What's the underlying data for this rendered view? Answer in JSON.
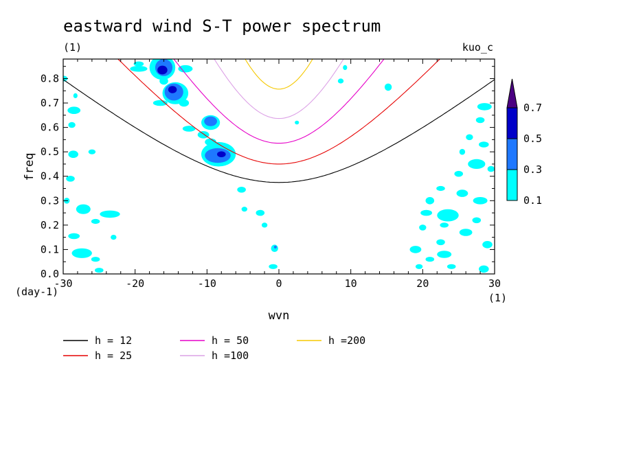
{
  "chart_data": {
    "type": "heatmap",
    "title": "eastward wind S-T power spectrum",
    "subtitle_left": "(1)",
    "subtitle_right": "kuo_c",
    "xlabel": "wvn",
    "ylabel": "freq",
    "x_unit": "(1)",
    "y_unit": "(day-1)",
    "xlim": [
      -30,
      30
    ],
    "ylim": [
      0,
      0.88
    ],
    "x_ticks": [
      "-30",
      "-20",
      "-10",
      "0",
      "10",
      "20",
      "30"
    ],
    "y_ticks": [
      "0.0",
      "0.1",
      "0.2",
      "0.3",
      "0.4",
      "0.5",
      "0.6",
      "0.7",
      "0.8"
    ],
    "colorbar": {
      "levels": [
        "0.1",
        "0.3",
        "0.5",
        "0.7"
      ],
      "colors": [
        "#00ffff",
        "#1e78ff",
        "#0000c8",
        "#4b0082"
      ]
    },
    "dispersion_curves": [
      {
        "name": "h = 12",
        "h": 12,
        "color": "#000000"
      },
      {
        "name": "h = 25",
        "h": 25,
        "color": "#e60000"
      },
      {
        "name": "h = 50",
        "h": 50,
        "color": "#e600c8"
      },
      {
        "name": "h =100",
        "h": 100,
        "color": "#dca0e6"
      },
      {
        "name": "h =200",
        "h": 200,
        "color": "#f5c800"
      }
    ],
    "patches": [
      {
        "x": -16.0,
        "y": 0.845,
        "rx": 1.2,
        "ry": 0.035,
        "level": 2
      },
      {
        "x": -16.2,
        "y": 0.835,
        "rx": 0.7,
        "ry": 0.018,
        "level": 3
      },
      {
        "x": -14.6,
        "y": 0.745,
        "rx": 1.3,
        "ry": 0.035,
        "level": 2
      },
      {
        "x": -14.8,
        "y": 0.755,
        "rx": 0.6,
        "ry": 0.015,
        "level": 3
      },
      {
        "x": -9.5,
        "y": 0.625,
        "rx": 0.9,
        "ry": 0.02,
        "level": 2
      },
      {
        "x": -8.5,
        "y": 0.485,
        "rx": 1.8,
        "ry": 0.03,
        "level": 2
      },
      {
        "x": -8.0,
        "y": 0.49,
        "rx": 0.6,
        "ry": 0.012,
        "level": 3
      },
      {
        "x": -16.2,
        "y": 0.845,
        "rx": 1.8,
        "ry": 0.05,
        "level": 1
      },
      {
        "x": -19.5,
        "y": 0.84,
        "rx": 1.2,
        "ry": 0.012,
        "level": 1
      },
      {
        "x": -13.0,
        "y": 0.84,
        "rx": 1.0,
        "ry": 0.015,
        "level": 1
      },
      {
        "x": -16.0,
        "y": 0.79,
        "rx": 0.6,
        "ry": 0.015,
        "level": 1
      },
      {
        "x": -14.4,
        "y": 0.74,
        "rx": 1.8,
        "ry": 0.045,
        "level": 1
      },
      {
        "x": -13.2,
        "y": 0.7,
        "rx": 0.7,
        "ry": 0.015,
        "level": 1
      },
      {
        "x": -16.5,
        "y": 0.7,
        "rx": 1.0,
        "ry": 0.012,
        "level": 1
      },
      {
        "x": -12.5,
        "y": 0.595,
        "rx": 0.9,
        "ry": 0.012,
        "level": 1
      },
      {
        "x": -9.5,
        "y": 0.62,
        "rx": 1.3,
        "ry": 0.03,
        "level": 1
      },
      {
        "x": -10.5,
        "y": 0.57,
        "rx": 0.8,
        "ry": 0.015,
        "level": 1
      },
      {
        "x": -8.4,
        "y": 0.49,
        "rx": 2.4,
        "ry": 0.05,
        "level": 1
      },
      {
        "x": -9.5,
        "y": 0.54,
        "rx": 0.8,
        "ry": 0.015,
        "level": 1
      },
      {
        "x": -5.2,
        "y": 0.345,
        "rx": 0.6,
        "ry": 0.012,
        "level": 1
      },
      {
        "x": -4.8,
        "y": 0.265,
        "rx": 0.4,
        "ry": 0.01,
        "level": 1
      },
      {
        "x": -2.6,
        "y": 0.25,
        "rx": 0.6,
        "ry": 0.012,
        "level": 1
      },
      {
        "x": -2.0,
        "y": 0.2,
        "rx": 0.4,
        "ry": 0.01,
        "level": 1
      },
      {
        "x": -0.6,
        "y": 0.105,
        "rx": 0.5,
        "ry": 0.015,
        "level": 1
      },
      {
        "x": -0.5,
        "y": 0.11,
        "rx": 0.2,
        "ry": 0.006,
        "level": 2
      },
      {
        "x": -0.8,
        "y": 0.03,
        "rx": 0.6,
        "ry": 0.01,
        "level": 1
      },
      {
        "x": 2.5,
        "y": 0.62,
        "rx": 0.3,
        "ry": 0.008,
        "level": 1
      },
      {
        "x": 8.6,
        "y": 0.79,
        "rx": 0.4,
        "ry": 0.01,
        "level": 1
      },
      {
        "x": 15.2,
        "y": 0.765,
        "rx": 0.5,
        "ry": 0.015,
        "level": 1
      },
      {
        "x": 9.2,
        "y": 0.845,
        "rx": 0.3,
        "ry": 0.01,
        "level": 1
      },
      {
        "x": -28.5,
        "y": 0.67,
        "rx": 0.9,
        "ry": 0.015,
        "level": 1
      },
      {
        "x": -28.8,
        "y": 0.61,
        "rx": 0.5,
        "ry": 0.012,
        "level": 1
      },
      {
        "x": -28.6,
        "y": 0.49,
        "rx": 0.7,
        "ry": 0.015,
        "level": 1
      },
      {
        "x": -26.0,
        "y": 0.5,
        "rx": 0.5,
        "ry": 0.01,
        "level": 1
      },
      {
        "x": -29.0,
        "y": 0.39,
        "rx": 0.6,
        "ry": 0.012,
        "level": 1
      },
      {
        "x": -29.5,
        "y": 0.3,
        "rx": 0.4,
        "ry": 0.012,
        "level": 1
      },
      {
        "x": -27.2,
        "y": 0.265,
        "rx": 1.0,
        "ry": 0.02,
        "level": 1
      },
      {
        "x": -23.5,
        "y": 0.245,
        "rx": 1.4,
        "ry": 0.015,
        "level": 1
      },
      {
        "x": -25.5,
        "y": 0.215,
        "rx": 0.6,
        "ry": 0.01,
        "level": 1
      },
      {
        "x": -28.5,
        "y": 0.155,
        "rx": 0.8,
        "ry": 0.012,
        "level": 1
      },
      {
        "x": -23.0,
        "y": 0.15,
        "rx": 0.4,
        "ry": 0.01,
        "level": 1
      },
      {
        "x": -27.4,
        "y": 0.085,
        "rx": 1.4,
        "ry": 0.02,
        "level": 1
      },
      {
        "x": -25.5,
        "y": 0.06,
        "rx": 0.6,
        "ry": 0.01,
        "level": 1
      },
      {
        "x": -25.0,
        "y": 0.015,
        "rx": 0.6,
        "ry": 0.01,
        "level": 1
      },
      {
        "x": -19.5,
        "y": 0.86,
        "rx": 0.7,
        "ry": 0.01,
        "level": 1
      },
      {
        "x": -30.0,
        "y": 0.8,
        "rx": 0.6,
        "ry": 0.012,
        "level": 1
      },
      {
        "x": -28.3,
        "y": 0.73,
        "rx": 0.3,
        "ry": 0.01,
        "level": 1
      },
      {
        "x": 28.6,
        "y": 0.685,
        "rx": 1.0,
        "ry": 0.015,
        "level": 1
      },
      {
        "x": 28.0,
        "y": 0.63,
        "rx": 0.6,
        "ry": 0.012,
        "level": 1
      },
      {
        "x": 26.5,
        "y": 0.56,
        "rx": 0.5,
        "ry": 0.012,
        "level": 1
      },
      {
        "x": 28.5,
        "y": 0.53,
        "rx": 0.7,
        "ry": 0.012,
        "level": 1
      },
      {
        "x": 25.5,
        "y": 0.5,
        "rx": 0.4,
        "ry": 0.012,
        "level": 1
      },
      {
        "x": 27.5,
        "y": 0.45,
        "rx": 1.2,
        "ry": 0.02,
        "level": 1
      },
      {
        "x": 25.0,
        "y": 0.41,
        "rx": 0.6,
        "ry": 0.012,
        "level": 1
      },
      {
        "x": 29.5,
        "y": 0.43,
        "rx": 0.5,
        "ry": 0.012,
        "level": 1
      },
      {
        "x": 22.5,
        "y": 0.35,
        "rx": 0.6,
        "ry": 0.01,
        "level": 1
      },
      {
        "x": 25.5,
        "y": 0.33,
        "rx": 0.8,
        "ry": 0.015,
        "level": 1
      },
      {
        "x": 28.0,
        "y": 0.3,
        "rx": 1.0,
        "ry": 0.015,
        "level": 1
      },
      {
        "x": 21.0,
        "y": 0.3,
        "rx": 0.6,
        "ry": 0.015,
        "level": 1
      },
      {
        "x": 20.5,
        "y": 0.25,
        "rx": 0.8,
        "ry": 0.012,
        "level": 1
      },
      {
        "x": 23.5,
        "y": 0.24,
        "rx": 1.5,
        "ry": 0.025,
        "level": 1
      },
      {
        "x": 27.5,
        "y": 0.22,
        "rx": 0.6,
        "ry": 0.012,
        "level": 1
      },
      {
        "x": 23.0,
        "y": 0.2,
        "rx": 0.6,
        "ry": 0.01,
        "level": 1
      },
      {
        "x": 26.0,
        "y": 0.17,
        "rx": 0.9,
        "ry": 0.015,
        "level": 1
      },
      {
        "x": 22.5,
        "y": 0.13,
        "rx": 0.6,
        "ry": 0.012,
        "level": 1
      },
      {
        "x": 29.0,
        "y": 0.12,
        "rx": 0.7,
        "ry": 0.015,
        "level": 1
      },
      {
        "x": 19.0,
        "y": 0.1,
        "rx": 0.8,
        "ry": 0.015,
        "level": 1
      },
      {
        "x": 23.0,
        "y": 0.08,
        "rx": 1.0,
        "ry": 0.015,
        "level": 1
      },
      {
        "x": 21.0,
        "y": 0.06,
        "rx": 0.6,
        "ry": 0.01,
        "level": 1
      },
      {
        "x": 19.5,
        "y": 0.03,
        "rx": 0.5,
        "ry": 0.01,
        "level": 1
      },
      {
        "x": 28.5,
        "y": 0.02,
        "rx": 0.7,
        "ry": 0.015,
        "level": 1
      },
      {
        "x": 20.0,
        "y": 0.19,
        "rx": 0.5,
        "ry": 0.012,
        "level": 1
      },
      {
        "x": 24.0,
        "y": 0.03,
        "rx": 0.6,
        "ry": 0.01,
        "level": 1
      }
    ]
  }
}
